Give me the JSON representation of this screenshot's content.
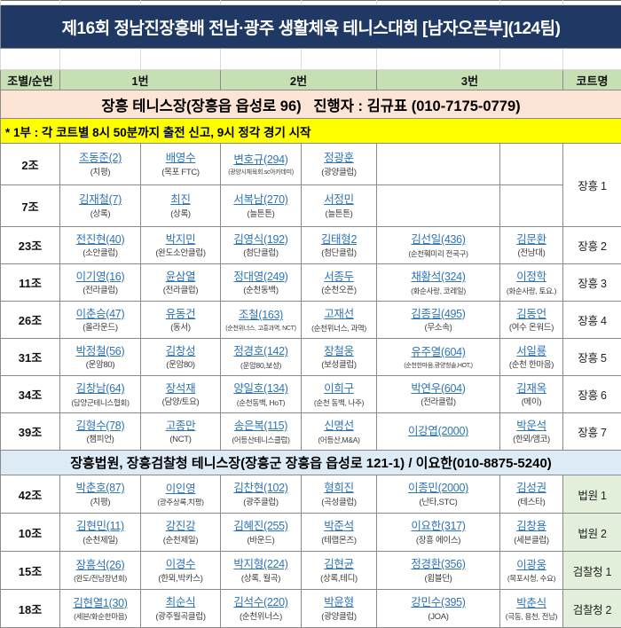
{
  "title": "제16회 정남진장흥배 전남·광주 생활체육 테니스대회 [남자오픈부](124팀)",
  "columns": {
    "group": "조별/순번",
    "p1": "1번",
    "p2": "2번",
    "p3": "3번",
    "court": "코트명"
  },
  "colors": {
    "title_bg": "#1F3864",
    "header_bg": "#C6E0B4",
    "venue1_banner_bg": "#FCE4D6",
    "note_bg": "#FFFF00",
    "venue2_banner_bg": "#DDEBF7",
    "court2_bg": "#E2EFDA",
    "link_blue": "#2E74B5"
  },
  "venues": [
    {
      "banner": "장흥 테니스장(장흥읍 읍성로 96)   진행자 : 김규표 (010-7175-0779)",
      "note": "* 1부 : 각 코트별 8시 50분까지 출전 신고, 9시 정각 경기 시작",
      "groups": [
        {
          "no": "2조",
          "court": "장흥 1",
          "court_span": 2,
          "players": [
            {
              "name": "조동준(2)",
              "club": "(치평)"
            },
            {
              "name": "배영수",
              "club": "(목포 FTC)"
            },
            {
              "name": "변호규(294)",
              "club": "(광양시체육회.sc아카데미)"
            },
            {
              "name": "정광훈",
              "club": "(광양클럽)"
            },
            null,
            null
          ]
        },
        {
          "no": "7조",
          "players": [
            {
              "name": "김재철(7)",
              "club": "(상록)"
            },
            {
              "name": "최진",
              "club": "(상록)"
            },
            {
              "name": "서복남(270)",
              "club": "(늘튼튼)"
            },
            {
              "name": "서정민",
              "club": "(늘튼튼)"
            },
            null,
            null
          ]
        },
        {
          "no": "23조",
          "court": "장흥 2",
          "players": [
            {
              "name": "전진현(40)",
              "club": "(소안클럽)"
            },
            {
              "name": "박지민",
              "club": "(완도소안클럽)"
            },
            {
              "name": "김영식(192)",
              "club": "(첨단클럽)"
            },
            {
              "name": "김태형2",
              "club": "(첨단클럽)"
            },
            {
              "name": "김선일(436)",
              "club": "(순천훼미리 전국구)"
            },
            {
              "name": "김문환",
              "club": "(전남대)"
            }
          ]
        },
        {
          "no": "11조",
          "court": "장흥 3",
          "players": [
            {
              "name": "이기영(16)",
              "club": "(전라클럽)"
            },
            {
              "name": "윤삼열",
              "club": "(전라클럽)"
            },
            {
              "name": "정대영(249)",
              "club": "(순천동백)"
            },
            {
              "name": "서종두",
              "club": "(순천오픈)"
            },
            {
              "name": "채황석(324)",
              "club": "(화순사랑, 코레일)"
            },
            {
              "name": "이정학",
              "club": "(화순사랑, 토요.)"
            }
          ]
        },
        {
          "no": "26조",
          "court": "장흥 4",
          "players": [
            {
              "name": "이춘승(47)",
              "club": "(올라운드)"
            },
            {
              "name": "유동건",
              "club": "(동서)"
            },
            {
              "name": "조철(163)",
              "club": "(순천위너스, 고흥과역, NCT)"
            },
            {
              "name": "고재선",
              "club": "(순천위너스, 과역)"
            },
            {
              "name": "김종길(495)",
              "club": "(무소속)"
            },
            {
              "name": "김동언",
              "club": "(여수 온워드)"
            }
          ]
        },
        {
          "no": "31조",
          "court": "장흥 5",
          "players": [
            {
              "name": "박정철(56)",
              "club": "(운암80)"
            },
            {
              "name": "김창성",
              "club": "(운암80)"
            },
            {
              "name": "정경호(142)",
              "club": "(운암80,보성)"
            },
            {
              "name": "장철웅",
              "club": "(보성클럽)"
            },
            {
              "name": "유주열(604)",
              "club": "(순천한마음,광양청솔,HOT,)"
            },
            {
              "name": "서일룡",
              "club": "(순천 한마음)"
            }
          ]
        },
        {
          "no": "34조",
          "court": "장흥 6",
          "players": [
            {
              "name": "김창남(64)",
              "club": "(담양군테니스협회)"
            },
            {
              "name": "장석재",
              "club": "(담양/토요)"
            },
            {
              "name": "양일호(134)",
              "club": "(순천동백, HoT)"
            },
            {
              "name": "이희구",
              "club": "(순천 동백, 나주)"
            },
            {
              "name": "박연우(604)",
              "club": "(전라클럽)"
            },
            {
              "name": "김재옥",
              "club": "(메이)"
            }
          ]
        },
        {
          "no": "39조",
          "court": "장흥 7",
          "players": [
            {
              "name": "김형수(78)",
              "club": "(챔피언)"
            },
            {
              "name": "고종만",
              "club": "(NCT)"
            },
            {
              "name": "송은복(115)",
              "club": "(어등산테니스클럽)"
            },
            {
              "name": "신명선",
              "club": "(어등산,M&A)"
            },
            {
              "name": "이강엽(2000)",
              "club": ""
            },
            {
              "name": "박운석",
              "club": "(한뫼/앰코)"
            }
          ]
        }
      ]
    },
    {
      "banner": "장흥법원, 장흥검찰청 테니스장(장흥군 장흥읍 읍성로 121-1) / 이요한(010-8875-5240)",
      "note": "",
      "groups": [
        {
          "no": "42조",
          "court": "법원 1",
          "players": [
            {
              "name": "박춘호(87)",
              "club": "(치평)"
            },
            {
              "name": "이인영",
              "club": "(광주상록,치평)"
            },
            {
              "name": "김찬현(102)",
              "club": "(광주클럽)"
            },
            {
              "name": "형희진",
              "club": "(곡성클럽)"
            },
            {
              "name": "이종민(2000)",
              "club": "(난타,STC)"
            },
            {
              "name": "김성권",
              "club": "(테스타)"
            }
          ]
        },
        {
          "no": "10조",
          "court": "법원 2",
          "players": [
            {
              "name": "김현민(11)",
              "club": "(순천제일)"
            },
            {
              "name": "강진강",
              "club": "(순천제일)"
            },
            {
              "name": "김혜진(255)",
              "club": "(바운드)"
            },
            {
              "name": "박준석",
              "club": "(테랩몬즈)"
            },
            {
              "name": "이요한(317)",
              "club": "(장흥 에이스)"
            },
            {
              "name": "김창용",
              "club": "(세븐클럽)"
            }
          ]
        },
        {
          "no": "15조",
          "court": "검찰청 1",
          "players": [
            {
              "name": "장흥석(26)",
              "club": "(완도/전남장년회)"
            },
            {
              "name": "이경수",
              "club": "(한뫼,박카스)"
            },
            {
              "name": "박지형(224)",
              "club": "(상록, 월곡)"
            },
            {
              "name": "김현균",
              "club": "(상록,테디)"
            },
            {
              "name": "정경환(356)",
              "club": "(윔블던)"
            },
            {
              "name": "이광웅",
              "club": "(목포시청, 수요)"
            }
          ]
        },
        {
          "no": "18조",
          "court": "검찰청 2",
          "players": [
            {
              "name": "김현열1(30)",
              "club": "(세븐/화순한마음)"
            },
            {
              "name": "최순식",
              "club": "(광주월곡클럽)"
            },
            {
              "name": "김석수(220)",
              "club": "(순천위너스)"
            },
            {
              "name": "박윤형",
              "club": "(광양클럽)"
            },
            {
              "name": "강민수(395)",
              "club": "(JOA)"
            },
            {
              "name": "박춘식",
              "club": "(극동, 용천, 전남)"
            }
          ]
        }
      ]
    }
  ]
}
